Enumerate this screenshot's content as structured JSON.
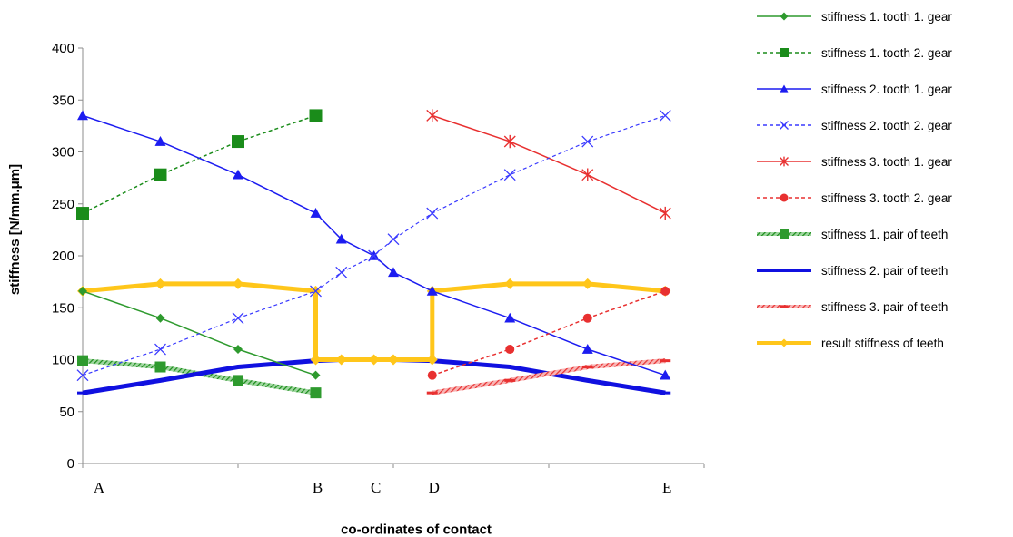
{
  "chart_data": {
    "type": "line",
    "xlabel": "co-ordinates of contact",
    "ylabel": "stiffness [N/mm.μm]",
    "ylim": [
      0,
      400
    ],
    "yticks": [
      0,
      50,
      100,
      150,
      200,
      250,
      300,
      350,
      400
    ],
    "xlim": [
      0,
      8
    ],
    "x_points": [
      {
        "label": "A",
        "x": 0
      },
      {
        "label": "B",
        "x": 3
      },
      {
        "label": "C",
        "x": 3.75
      },
      {
        "label": "D",
        "x": 4.5
      },
      {
        "label": "E",
        "x": 7.5
      }
    ],
    "grid": false,
    "legend_position": "right",
    "series": [
      {
        "name": "stiffness 1. tooth 1. gear",
        "color": "#2e9a2e",
        "dash": "solid",
        "width": 1.5,
        "marker": "diamond",
        "points": [
          [
            0,
            166
          ],
          [
            1,
            140
          ],
          [
            2,
            110
          ],
          [
            3,
            85
          ]
        ]
      },
      {
        "name": "stiffness 1. tooth 2. gear",
        "color": "#1a8c1a",
        "dash": "dashed",
        "width": 1.5,
        "marker": "square",
        "points": [
          [
            0,
            241
          ],
          [
            1,
            278
          ],
          [
            2,
            310
          ],
          [
            3,
            335
          ]
        ]
      },
      {
        "name": "stiffness 2. tooth 1. gear",
        "color": "#1c1cf0",
        "dash": "solid",
        "width": 1.5,
        "marker": "triangle",
        "points": [
          [
            0,
            335
          ],
          [
            1,
            310
          ],
          [
            2,
            278
          ],
          [
            3,
            241
          ],
          [
            3.33,
            216
          ],
          [
            3.75,
            200
          ],
          [
            4,
            184
          ],
          [
            4.5,
            166
          ],
          [
            5.5,
            140
          ],
          [
            6.5,
            110
          ],
          [
            7.5,
            85
          ]
        ]
      },
      {
        "name": "stiffness 2. tooth 2. gear",
        "color": "#3a3aff",
        "dash": "dashed",
        "width": 1.2,
        "marker": "x",
        "points": [
          [
            0,
            85
          ],
          [
            1,
            110
          ],
          [
            2,
            140
          ],
          [
            3,
            166
          ],
          [
            3.33,
            184
          ],
          [
            3.75,
            200
          ],
          [
            4,
            216
          ],
          [
            4.5,
            241
          ],
          [
            5.5,
            278
          ],
          [
            6.5,
            310
          ],
          [
            7.5,
            335
          ]
        ]
      },
      {
        "name": "stiffness 3. tooth 1. gear",
        "color": "#e83030",
        "dash": "solid",
        "width": 1.5,
        "marker": "star",
        "points": [
          [
            4.5,
            335
          ],
          [
            5.5,
            310
          ],
          [
            6.5,
            278
          ],
          [
            7.5,
            241
          ]
        ]
      },
      {
        "name": "stiffness 3. tooth 2. gear",
        "color": "#e83030",
        "dash": "dashed",
        "width": 1.5,
        "marker": "circle",
        "points": [
          [
            4.5,
            85
          ],
          [
            5.5,
            110
          ],
          [
            6.5,
            140
          ],
          [
            7.5,
            166
          ]
        ]
      },
      {
        "name": "stiffness 1. pair of teeth",
        "color": "#2e9a2e",
        "dash": "hatched",
        "width": 5,
        "marker": "square",
        "points": [
          [
            0,
            99
          ],
          [
            1,
            93
          ],
          [
            2,
            80
          ],
          [
            3,
            68
          ]
        ]
      },
      {
        "name": "stiffness 2. pair of teeth",
        "color": "#1010e0",
        "dash": "solid",
        "width": 5,
        "marker": "dash",
        "points": [
          [
            0,
            68
          ],
          [
            1,
            80
          ],
          [
            2,
            93
          ],
          [
            3,
            99
          ],
          [
            3.33,
            100
          ],
          [
            3.75,
            100
          ],
          [
            4,
            100
          ],
          [
            4.5,
            99
          ],
          [
            5.5,
            93
          ],
          [
            6.5,
            80
          ],
          [
            7.5,
            68
          ]
        ]
      },
      {
        "name": "stiffness 3. pair of teeth",
        "color": "#e83030",
        "dash": "hatched",
        "width": 5,
        "marker": "dash",
        "points": [
          [
            4.5,
            68
          ],
          [
            5.5,
            80
          ],
          [
            6.5,
            93
          ],
          [
            7.5,
            99
          ]
        ]
      },
      {
        "name": "result stiffness of teeth",
        "color": "#ffc61a",
        "dash": "solid",
        "width": 5,
        "marker": "diamond",
        "points": [
          [
            0,
            166
          ],
          [
            1,
            173
          ],
          [
            2,
            173
          ],
          [
            3,
            166
          ],
          [
            3,
            100
          ],
          [
            3.33,
            100
          ],
          [
            3.75,
            100
          ],
          [
            4,
            100
          ],
          [
            4.5,
            100
          ],
          [
            4.5,
            166
          ],
          [
            5.5,
            173
          ],
          [
            6.5,
            173
          ],
          [
            7.5,
            166
          ]
        ]
      }
    ]
  }
}
